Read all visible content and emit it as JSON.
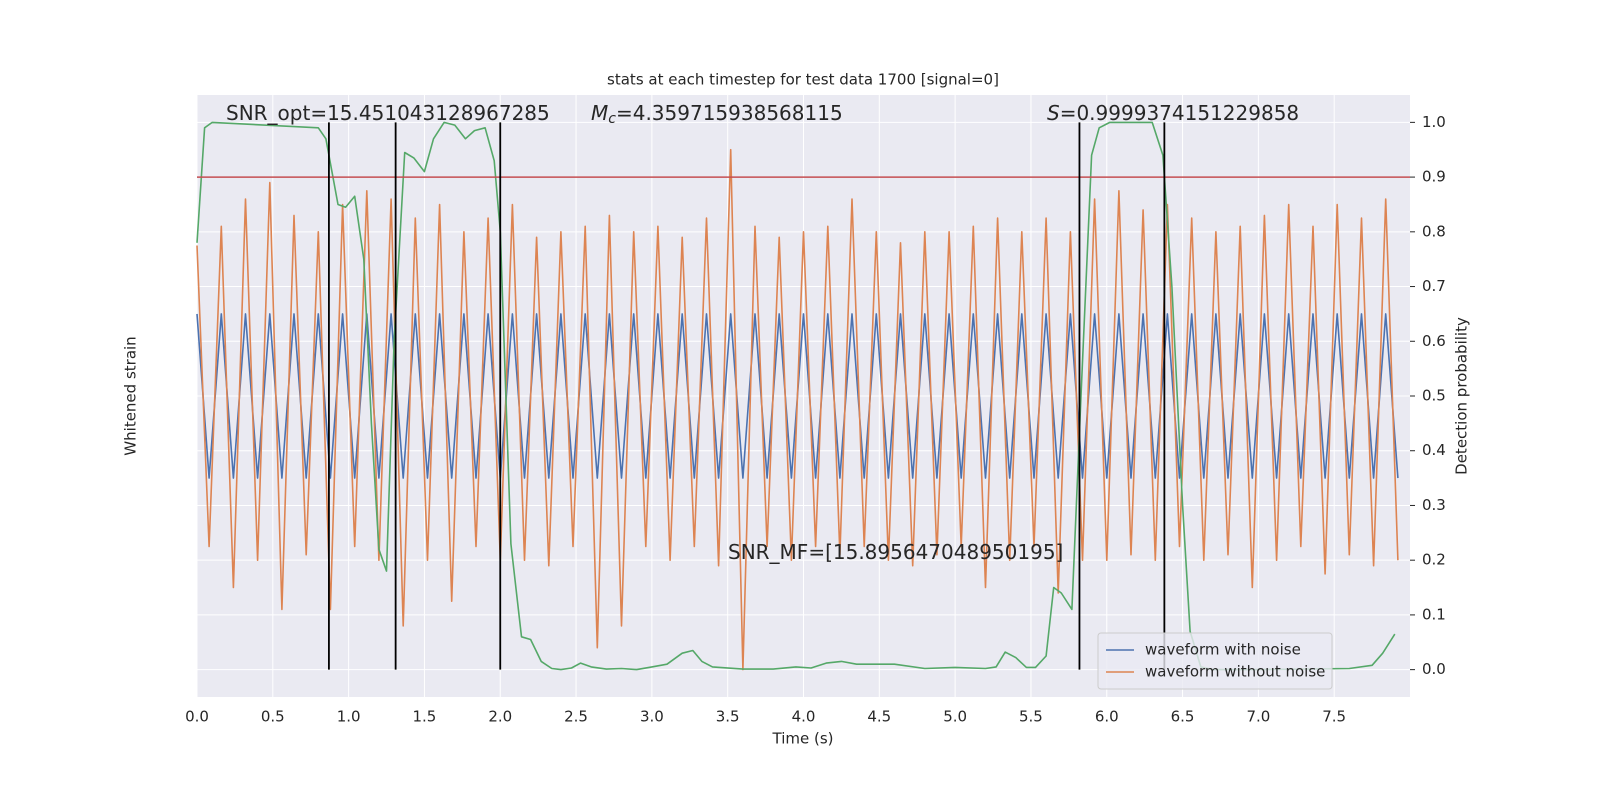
{
  "chart_data": {
    "type": "line",
    "title": "stats at each timestep for test data 1700 [signal=0]",
    "xlabel": "Time (s)",
    "ylabel": "Whitened strain",
    "y2label": "Detection probability",
    "xlim": [
      0,
      8
    ],
    "xticks": [
      {
        "value": 0,
        "label": "0.0"
      },
      0.5,
      {
        "value": 1,
        "label": "1.0"
      },
      1.5,
      {
        "value": 2,
        "label": "2.0"
      },
      2.5,
      {
        "value": 3,
        "label": "3.0"
      },
      3.5,
      {
        "value": 4,
        "label": "4.0"
      },
      4.5,
      {
        "value": 5,
        "label": "5.0"
      },
      5.5,
      {
        "value": 6,
        "label": "6.0"
      },
      6.5,
      {
        "value": 7,
        "label": "7.0"
      },
      7.5
    ],
    "ylim": [
      -1.1,
      1.1
    ],
    "y2lim": [
      -0.05,
      1.05
    ],
    "y2ticks": [
      {
        "value": 0,
        "label": "0.0"
      },
      0.1,
      0.2,
      0.3,
      0.4,
      0.5,
      0.6,
      0.7,
      0.8,
      0.9,
      {
        "value": 1,
        "label": "1.0"
      }
    ],
    "grid": true,
    "legend": "lower right",
    "series": [
      {
        "name": "waveform with noise",
        "color": "#4c72b0",
        "axis": "y",
        "x": [
          0,
          0.08,
          0.16,
          0.24,
          0.32,
          0.4,
          0.48,
          0.56,
          0.64,
          0.72,
          0.8,
          0.88,
          0.96,
          1.04,
          1.12,
          1.2,
          1.28,
          1.36,
          1.44,
          1.52,
          1.6,
          1.68,
          1.76,
          1.84,
          1.92,
          2.0,
          2.08,
          2.16,
          2.24,
          2.32,
          2.4,
          2.48,
          2.56,
          2.64,
          2.72,
          2.8,
          2.88,
          2.96,
          3.04,
          3.12,
          3.2,
          3.28,
          3.36,
          3.44,
          3.52,
          3.6,
          3.68,
          3.76,
          3.84,
          3.92,
          4.0,
          4.08,
          4.16,
          4.24,
          4.32,
          4.4,
          4.48,
          4.56,
          4.64,
          4.72,
          4.8,
          4.88,
          4.96,
          5.04,
          5.12,
          5.2,
          5.28,
          5.36,
          5.44,
          5.52,
          5.6,
          5.68,
          5.76,
          5.84,
          5.92,
          6.0,
          6.08,
          6.16,
          6.24,
          6.32,
          6.4,
          6.48,
          6.56,
          6.64,
          6.72,
          6.8,
          6.88,
          6.96,
          7.04,
          7.12,
          7.2,
          7.28,
          7.36,
          7.44,
          7.52,
          7.6,
          7.68,
          7.76,
          7.84,
          7.92
        ],
        "values": [
          0.3,
          -0.3,
          0.3,
          -0.3,
          0.3,
          -0.3,
          0.3,
          -0.3,
          0.3,
          -0.3,
          0.3,
          -0.3,
          0.3,
          -0.3,
          0.3,
          -0.3,
          0.3,
          -0.3,
          0.3,
          -0.3,
          0.3,
          -0.3,
          0.3,
          -0.3,
          0.3,
          -0.3,
          0.3,
          -0.3,
          0.3,
          -0.3,
          0.3,
          -0.3,
          0.3,
          -0.3,
          0.3,
          -0.3,
          0.3,
          -0.3,
          0.3,
          -0.3,
          0.3,
          -0.3,
          0.3,
          -0.3,
          0.3,
          -0.3,
          0.3,
          -0.3,
          0.3,
          -0.3,
          0.3,
          -0.3,
          0.3,
          -0.3,
          0.3,
          -0.3,
          0.3,
          -0.3,
          0.3,
          -0.3,
          0.3,
          -0.3,
          0.3,
          -0.3,
          0.3,
          -0.3,
          0.3,
          -0.3,
          0.3,
          -0.3,
          0.3,
          -0.3,
          0.3,
          -0.3,
          0.3,
          -0.3,
          0.3,
          -0.3,
          0.3,
          -0.3,
          0.3,
          -0.3,
          0.3,
          -0.3,
          0.3,
          -0.3,
          0.3,
          -0.3,
          0.3,
          -0.3,
          0.3,
          -0.3,
          0.3,
          -0.3,
          0.3,
          -0.3,
          0.3,
          -0.3,
          0.3,
          -0.3
        ]
      },
      {
        "name": "waveform without noise",
        "color": "#dd8452",
        "axis": "y",
        "x": [
          0,
          0.08,
          0.16,
          0.24,
          0.32,
          0.4,
          0.48,
          0.56,
          0.64,
          0.72,
          0.8,
          0.88,
          0.96,
          1.04,
          1.12,
          1.2,
          1.28,
          1.36,
          1.44,
          1.52,
          1.6,
          1.68,
          1.76,
          1.84,
          1.92,
          2.0,
          2.08,
          2.16,
          2.24,
          2.32,
          2.4,
          2.48,
          2.56,
          2.64,
          2.72,
          2.8,
          2.88,
          2.96,
          3.04,
          3.12,
          3.2,
          3.28,
          3.36,
          3.44,
          3.52,
          3.6,
          3.68,
          3.76,
          3.84,
          3.92,
          4.0,
          4.08,
          4.16,
          4.24,
          4.32,
          4.4,
          4.48,
          4.56,
          4.64,
          4.72,
          4.8,
          4.88,
          4.96,
          5.04,
          5.12,
          5.2,
          5.28,
          5.36,
          5.44,
          5.52,
          5.6,
          5.68,
          5.76,
          5.84,
          5.92,
          6.0,
          6.08,
          6.16,
          6.24,
          6.32,
          6.4,
          6.48,
          6.56,
          6.64,
          6.72,
          6.8,
          6.88,
          6.96,
          7.04,
          7.12,
          7.2,
          7.28,
          7.36,
          7.44,
          7.52,
          7.6,
          7.68,
          7.76,
          7.84,
          7.92
        ],
        "values": [
          0.55,
          -0.55,
          0.62,
          -0.7,
          0.72,
          -0.6,
          0.78,
          -0.78,
          0.66,
          -0.58,
          0.6,
          -0.78,
          0.7,
          -0.55,
          0.75,
          -0.6,
          0.72,
          -0.84,
          0.65,
          -0.6,
          0.7,
          -0.75,
          0.6,
          -0.55,
          0.65,
          -0.6,
          0.7,
          -0.6,
          0.58,
          -0.62,
          0.6,
          -0.55,
          0.62,
          -0.92,
          0.66,
          -0.84,
          0.6,
          -0.55,
          0.62,
          -0.6,
          0.58,
          -0.55,
          0.65,
          -0.62,
          0.9,
          -1.0,
          0.62,
          -0.55,
          0.58,
          -0.6,
          0.6,
          -0.55,
          0.62,
          -0.58,
          0.72,
          -0.55,
          0.6,
          -0.6,
          0.56,
          -0.62,
          0.6,
          -0.58,
          0.6,
          -0.55,
          0.62,
          -0.7,
          0.65,
          -0.6,
          0.6,
          -0.55,
          0.65,
          -0.72,
          0.6,
          -0.6,
          0.72,
          -0.6,
          0.75,
          -0.58,
          0.68,
          -0.6,
          0.7,
          -0.55,
          0.65,
          -0.6,
          0.6,
          -0.58,
          0.62,
          -0.7,
          0.66,
          -0.6,
          0.7,
          -0.55,
          0.62,
          -0.65,
          0.7,
          -0.58,
          0.65,
          -0.62,
          0.72,
          -0.6
        ]
      },
      {
        "color": "#55a868",
        "axis": "y2",
        "x": [
          0,
          0.05,
          0.1,
          0.8,
          0.85,
          0.93,
          0.98,
          1.04,
          1.1,
          1.15,
          1.2,
          1.25,
          1.3,
          1.37,
          1.43,
          1.5,
          1.56,
          1.63,
          1.7,
          1.77,
          1.83,
          1.9,
          1.96,
          2.0,
          2.07,
          2.14,
          2.2,
          2.27,
          2.34,
          2.4,
          2.47,
          2.53,
          2.6,
          2.7,
          2.8,
          2.9,
          3.0,
          3.1,
          3.2,
          3.27,
          3.33,
          3.4,
          3.6,
          3.8,
          3.95,
          4.05,
          4.15,
          4.25,
          4.35,
          4.6,
          4.8,
          5.0,
          5.2,
          5.27,
          5.33,
          5.4,
          5.47,
          5.53,
          5.6,
          5.65,
          5.7,
          5.77,
          5.83,
          5.9,
          5.95,
          6.02,
          6.3,
          6.37,
          6.43,
          6.5,
          6.55,
          6.62,
          6.7,
          7.0,
          7.6,
          7.75,
          7.82,
          7.9
        ],
        "values": [
          0.78,
          0.99,
          1.0,
          0.99,
          0.97,
          0.85,
          0.845,
          0.865,
          0.75,
          0.45,
          0.22,
          0.18,
          0.6,
          0.945,
          0.935,
          0.91,
          0.97,
          1.0,
          0.995,
          0.97,
          0.985,
          0.99,
          0.93,
          0.8,
          0.23,
          0.06,
          0.055,
          0.015,
          0.002,
          0.0,
          0.003,
          0.012,
          0.005,
          0.001,
          0.002,
          0.0,
          0.005,
          0.01,
          0.03,
          0.035,
          0.015,
          0.005,
          0.001,
          0.001,
          0.005,
          0.003,
          0.012,
          0.015,
          0.01,
          0.01,
          0.002,
          0.004,
          0.002,
          0.005,
          0.032,
          0.022,
          0.004,
          0.004,
          0.025,
          0.15,
          0.14,
          0.11,
          0.5,
          0.94,
          0.99,
          1.0,
          1.0,
          0.94,
          0.7,
          0.3,
          0.07,
          0.005,
          0.0,
          0.0,
          0.002,
          0.008,
          0.03,
          0.065
        ]
      }
    ],
    "threshold": {
      "value": 0.9,
      "color": "#c44e52",
      "axis": "y2"
    },
    "vlines": [
      0.87,
      1.31,
      2.0,
      5.82,
      6.38
    ],
    "vline_color": "#000000",
    "annotations": [
      {
        "text": "SNR_opt=15.451043128967285"
      },
      {
        "symbol": "M",
        "subscript": "c",
        "text": "=4.359715938568115"
      },
      {
        "symbol": "S",
        "text": "=0.9999374151229858"
      },
      {
        "text": "SNR_MF=[15.895647048950195]"
      }
    ]
  }
}
